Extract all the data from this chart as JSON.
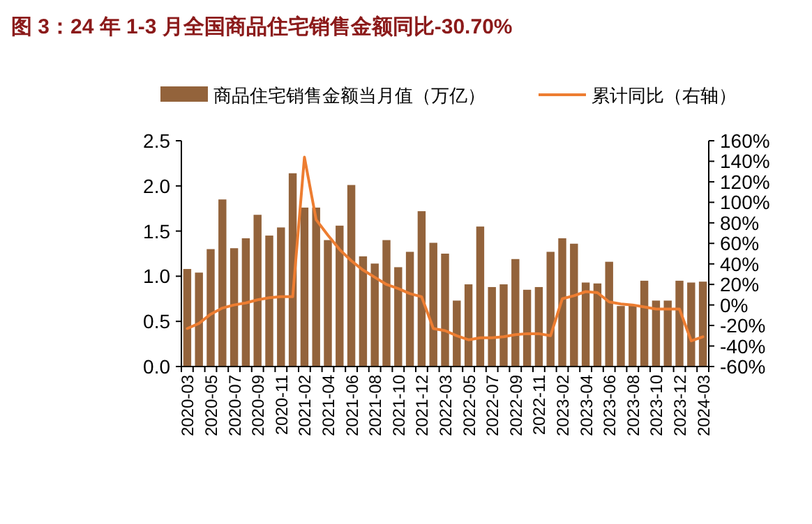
{
  "chart_data": {
    "type": "bar",
    "title": "图 3：24 年 1-3 月全国商品住宅销售金额同比-30.70%",
    "categories": [
      "2020-03",
      null,
      "2020-05",
      null,
      "2020-07",
      null,
      "2020-09",
      null,
      "2020-11",
      null,
      "2021-02",
      null,
      "2021-04",
      null,
      "2021-06",
      null,
      "2021-08",
      null,
      "2021-10",
      null,
      "2021-12",
      null,
      "2022-03",
      null,
      "2022-05",
      null,
      "2022-07",
      null,
      "2022-09",
      null,
      "2022-11",
      null,
      "2023-02",
      null,
      "2023-04",
      null,
      "2023-06",
      null,
      "2023-08",
      null,
      "2023-10",
      null,
      "2023-12",
      null,
      "2024-03"
    ],
    "series": [
      {
        "name": "商品住宅销售金额当月值（万亿）",
        "color": "#93633b",
        "values": [
          1.08,
          1.04,
          1.3,
          1.85,
          1.31,
          1.42,
          1.68,
          1.45,
          1.54,
          2.14,
          1.76,
          1.76,
          1.4,
          1.56,
          2.01,
          1.22,
          1.14,
          1.4,
          1.1,
          1.27,
          1.72,
          1.37,
          1.25,
          0.73,
          0.91,
          1.55,
          0.88,
          0.91,
          1.19,
          0.85,
          0.88,
          1.27,
          1.42,
          1.36,
          0.93,
          0.92,
          1.16,
          0.67,
          0.68,
          0.95,
          0.73,
          0.73,
          0.95,
          0.93,
          0.94
        ]
      },
      {
        "name": "累计同比（右轴）",
        "type": "line",
        "axis": "y2",
        "color": "#ed7d31",
        "values": [
          -23,
          -18,
          -9,
          -3,
          0,
          2,
          5,
          7,
          8,
          8,
          144,
          83,
          68,
          54,
          43,
          34,
          27,
          20,
          16,
          11,
          8,
          -23,
          -25,
          -30,
          -34,
          -32,
          -32,
          -31,
          -29,
          -28,
          -28,
          -30,
          6,
          9,
          13,
          12,
          3,
          1,
          0,
          -2,
          -4,
          -4,
          -4,
          -35,
          -31
        ]
      }
    ],
    "ylim": [
      0,
      2.5
    ],
    "yticks": [
      {
        "value": 0,
        "label": "0.0"
      },
      {
        "value": 0.5,
        "label": "0.5"
      },
      {
        "value": 1,
        "label": "1.0"
      },
      {
        "value": 1.5,
        "label": "1.5"
      },
      {
        "value": 2,
        "label": "2.0"
      },
      {
        "value": 2.5,
        "label": "2.5"
      }
    ],
    "y2lim": [
      -60,
      160
    ],
    "y2ticks": [
      {
        "value": -60,
        "label": "-60%"
      },
      {
        "value": -40,
        "label": "-40%"
      },
      {
        "value": -20,
        "label": "-20%"
      },
      {
        "value": 0,
        "label": "0%"
      },
      {
        "value": 20,
        "label": "20%"
      },
      {
        "value": 40,
        "label": "40%"
      },
      {
        "value": 60,
        "label": "60%"
      },
      {
        "value": 80,
        "label": "80%"
      },
      {
        "value": 100,
        "label": "100%"
      },
      {
        "value": 120,
        "label": "120%"
      },
      {
        "value": 140,
        "label": "140%"
      },
      {
        "value": 160,
        "label": "160%"
      }
    ],
    "grid": false,
    "legend": "top"
  }
}
